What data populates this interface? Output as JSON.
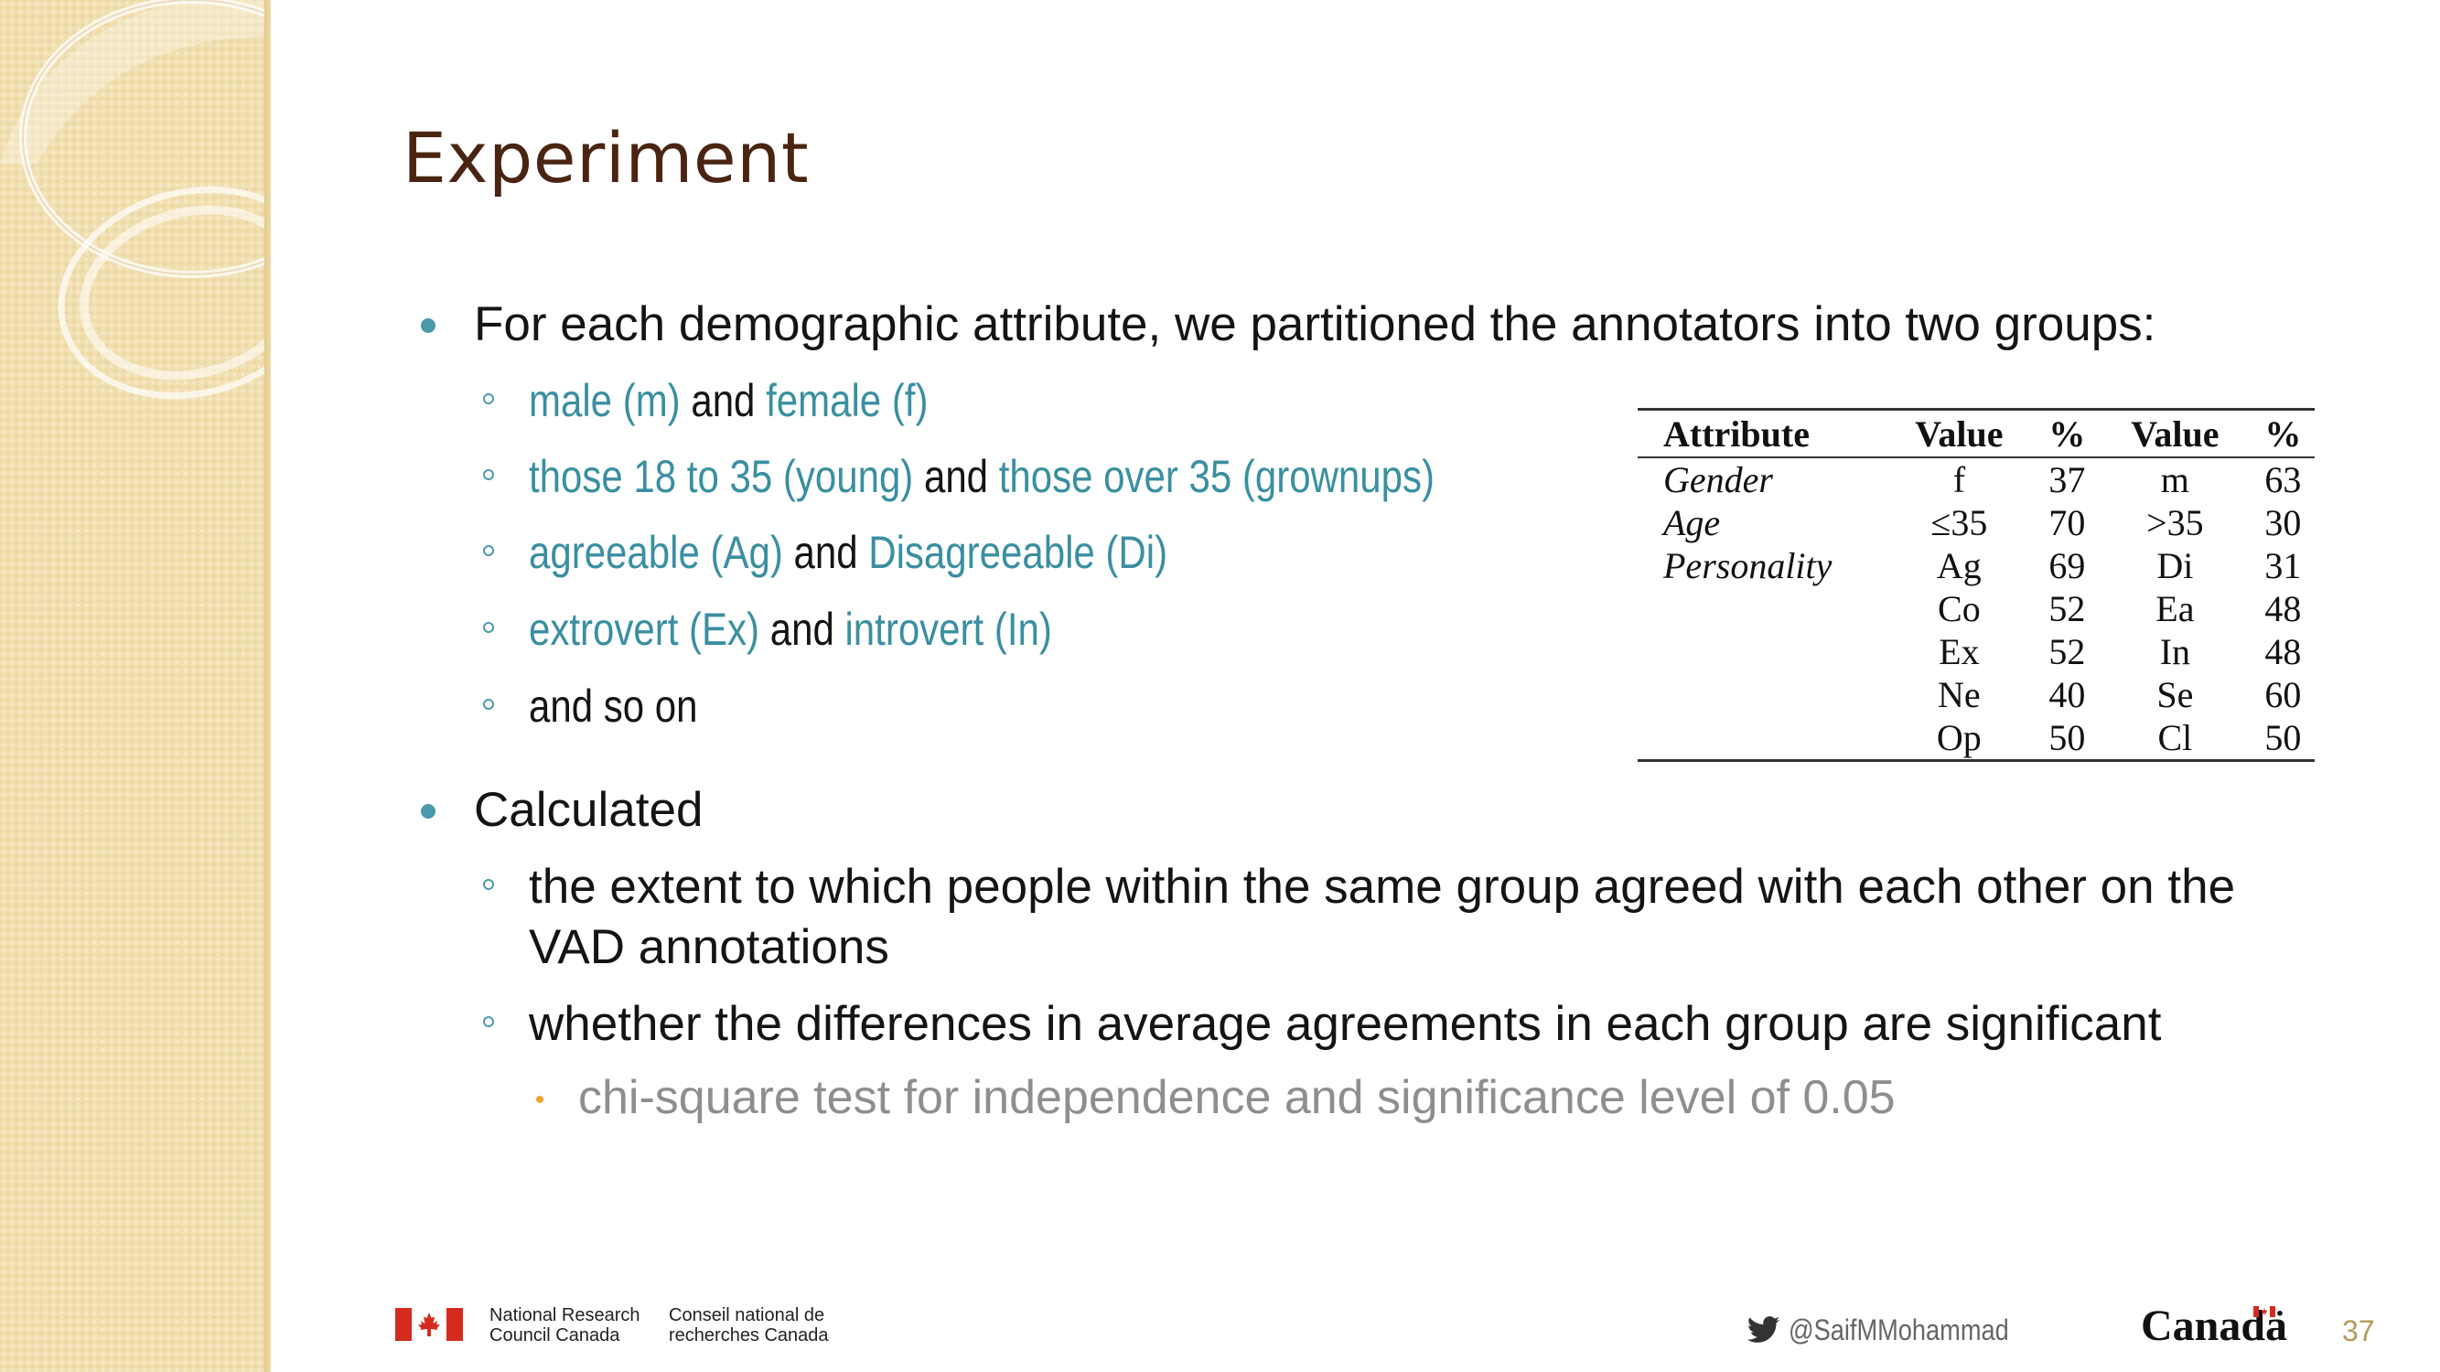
{
  "slide": {
    "title": "Experiment",
    "bullets": [
      {
        "text": "For each demographic attribute, we partitioned the annotators into two groups:",
        "subitems": [
          {
            "a": "male (m)",
            "join": " and ",
            "b": "female (f)"
          },
          {
            "a": "those 18 to 35 (young)",
            "join": " and ",
            "b": "those over 35 (grownups)"
          },
          {
            "a": "agreeable (Ag)",
            "join": " and ",
            "b": "Disagreeable (Di)"
          },
          {
            "a": "extrovert (Ex)",
            "join": " and ",
            "b": "introvert (In)"
          },
          {
            "plain": "and so on"
          }
        ]
      },
      {
        "text": "Calculated",
        "subitems": [
          {
            "plain": "the extent to which people within the same group agreed with each other on the VAD annotations"
          },
          {
            "plain": "whether the differences in average agreements in each group are significant",
            "subitems": [
              {
                "plain": "chi-square test for independence and significance level of 0.05"
              }
            ]
          }
        ]
      }
    ],
    "table": {
      "headers": [
        "Attribute",
        "Value",
        "%",
        "Value",
        "%"
      ],
      "rows": [
        [
          "Gender",
          "f",
          "37",
          "m",
          "63"
        ],
        [
          "Age",
          "≤35",
          "70",
          ">35",
          "30"
        ],
        [
          "Personality",
          "Ag",
          "69",
          "Di",
          "31"
        ],
        [
          "",
          "Co",
          "52",
          "Ea",
          "48"
        ],
        [
          "",
          "Ex",
          "52",
          "In",
          "48"
        ],
        [
          "",
          "Ne",
          "40",
          "Se",
          "60"
        ],
        [
          "",
          "Op",
          "50",
          "Cl",
          "50"
        ]
      ]
    }
  },
  "footer": {
    "org_en_line1": "National Research",
    "org_en_line2": "Council Canada",
    "org_fr_line1": "Conseil national de",
    "org_fr_line2": "recherches Canada",
    "twitter_handle": "@SaifMMohammad",
    "wordmark": "Canadä",
    "page_number": "37"
  },
  "colors": {
    "accent_teal": "#3a8fa1",
    "title": "#4a2412",
    "sidebar": "#f1dfb0",
    "sub_bullet_text": "#8e8e8e",
    "canada_red": "#d52b1e"
  }
}
